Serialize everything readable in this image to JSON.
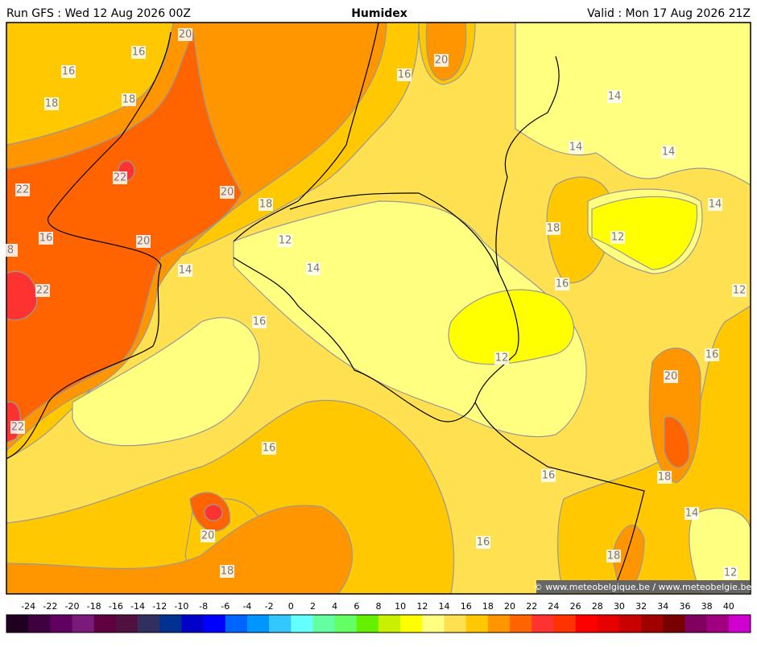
{
  "header": {
    "run": "Run GFS : Wed 12 Aug 2026 00Z",
    "title": "Humidex",
    "valid": "Valid : Mon 17 Aug 2026 21Z"
  },
  "map": {
    "contour_labels": [
      20,
      16,
      16,
      18,
      18,
      22,
      22,
      20,
      18,
      16,
      20,
      8,
      22,
      14,
      12,
      14,
      16,
      20,
      16,
      14,
      14,
      14,
      14,
      18,
      12,
      16,
      12,
      12,
      16,
      20,
      22,
      16,
      16,
      18,
      14,
      20,
      16,
      18,
      18,
      12
    ],
    "copyright": "© www.meteobelgique.be / www.meteobelgie.be"
  },
  "colorbar": {
    "ticks": [
      -24,
      -22,
      -20,
      -18,
      -16,
      -14,
      -12,
      -10,
      -8,
      -6,
      -4,
      -2,
      0,
      2,
      4,
      6,
      8,
      10,
      12,
      14,
      16,
      18,
      20,
      22,
      24,
      26,
      28,
      30,
      32,
      34,
      36,
      38,
      40
    ],
    "colors": [
      "#200020",
      "#400040",
      "#600060",
      "#7a1a7a",
      "#600040",
      "#501040",
      "#303060",
      "#003090",
      "#0000c8",
      "#0000ff",
      "#0064ff",
      "#0096ff",
      "#32c8ff",
      "#64ffff",
      "#64ffa0",
      "#64ff64",
      "#64f000",
      "#c8f000",
      "#ffff00",
      "#ffff80",
      "#ffe050",
      "#ffc800",
      "#ff9600",
      "#ff6400",
      "#ff3232",
      "#ff3200",
      "#ff0000",
      "#e60000",
      "#c80000",
      "#a00000",
      "#780000",
      "#800060",
      "#a00080",
      "#d000d0"
    ]
  }
}
